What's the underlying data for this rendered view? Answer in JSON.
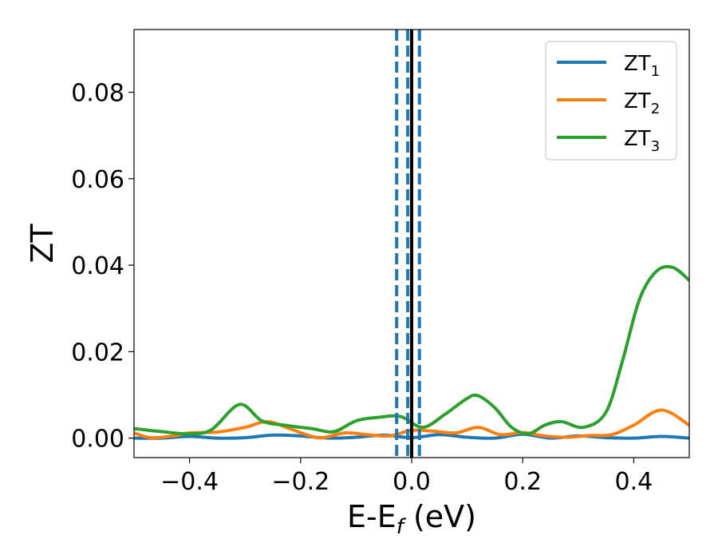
{
  "chart_data": {
    "type": "line",
    "title": "",
    "xlabel": {
      "main": "E-E",
      "sub": "f",
      "unit": " (eV)"
    },
    "ylabel": "ZT",
    "xlim": [
      -0.5,
      0.5
    ],
    "ylim": [
      -0.0045,
      0.0945
    ],
    "xticks": [
      -0.4,
      -0.2,
      0.0,
      0.2,
      0.4
    ],
    "xtick_labels": [
      "−0.4",
      "−0.2",
      "0.0",
      "0.2",
      "0.4"
    ],
    "yticks": [
      0.0,
      0.02,
      0.04,
      0.06,
      0.08
    ],
    "ytick_labels": [
      "0.00",
      "0.02",
      "0.04",
      "0.06",
      "0.08"
    ],
    "grid": false,
    "legend_position": "top-right",
    "vertical_lines": [
      {
        "x": -0.027,
        "style": "dashed",
        "color": "#1f77b4"
      },
      {
        "x": -0.007,
        "style": "dashed",
        "color": "#1f77b4"
      },
      {
        "x": 0.014,
        "style": "dashed",
        "color": "#1f77b4"
      },
      {
        "x": 0.0,
        "style": "solid",
        "color": "#000000"
      }
    ],
    "series": [
      {
        "name": "ZT1",
        "label_main": "ZT",
        "label_sub": "1",
        "color": "#1f77b4",
        "x": [
          -0.5,
          -0.45,
          -0.4,
          -0.35,
          -0.3,
          -0.25,
          -0.2,
          -0.15,
          -0.1,
          -0.05,
          0.0,
          0.05,
          0.1,
          0.15,
          0.2,
          0.25,
          0.3,
          0.35,
          0.4,
          0.45,
          0.5
        ],
        "y": [
          0.0,
          0.0,
          0.0004,
          0.0,
          0.0001,
          0.0007,
          0.0005,
          0.0,
          0.0002,
          0.0007,
          0.0001,
          0.0008,
          0.0002,
          0.0,
          0.0009,
          0.0,
          0.0005,
          0.0001,
          0.0,
          0.0004,
          0.0
        ]
      },
      {
        "name": "ZT2",
        "label_main": "ZT",
        "label_sub": "2",
        "color": "#ff7f0e",
        "x": [
          -0.5,
          -0.47,
          -0.43,
          -0.4,
          -0.35,
          -0.3,
          -0.26,
          -0.22,
          -0.18,
          -0.16,
          -0.12,
          -0.08,
          -0.04,
          0.0,
          0.04,
          0.08,
          0.12,
          0.16,
          0.2,
          0.24,
          0.28,
          0.32,
          0.36,
          0.4,
          0.45,
          0.5
        ],
        "y": [
          0.0012,
          0.0001,
          0.0005,
          0.0012,
          0.0014,
          0.0025,
          0.0038,
          0.0022,
          0.0004,
          0.0001,
          0.0012,
          0.0008,
          0.0005,
          0.0018,
          0.0016,
          0.0012,
          0.0025,
          0.0008,
          0.0013,
          0.0005,
          0.0002,
          0.0006,
          0.0008,
          0.003,
          0.0065,
          0.003
        ]
      },
      {
        "name": "ZT3",
        "label_main": "ZT",
        "label_sub": "3",
        "color": "#2ca02c",
        "x": [
          -0.5,
          -0.45,
          -0.4,
          -0.36,
          -0.31,
          -0.27,
          -0.23,
          -0.18,
          -0.14,
          -0.1,
          -0.06,
          -0.02,
          0.02,
          0.06,
          0.1,
          0.12,
          0.15,
          0.18,
          0.21,
          0.24,
          0.27,
          0.31,
          0.35,
          0.38,
          0.41,
          0.44,
          0.47,
          0.5
        ],
        "y": [
          0.0022,
          0.0015,
          0.001,
          0.002,
          0.0078,
          0.004,
          0.003,
          0.0022,
          0.0015,
          0.004,
          0.0048,
          0.005,
          0.0025,
          0.0055,
          0.0092,
          0.0098,
          0.007,
          0.0025,
          0.001,
          0.003,
          0.0038,
          0.0025,
          0.006,
          0.018,
          0.032,
          0.0385,
          0.0395,
          0.0365
        ]
      }
    ]
  }
}
